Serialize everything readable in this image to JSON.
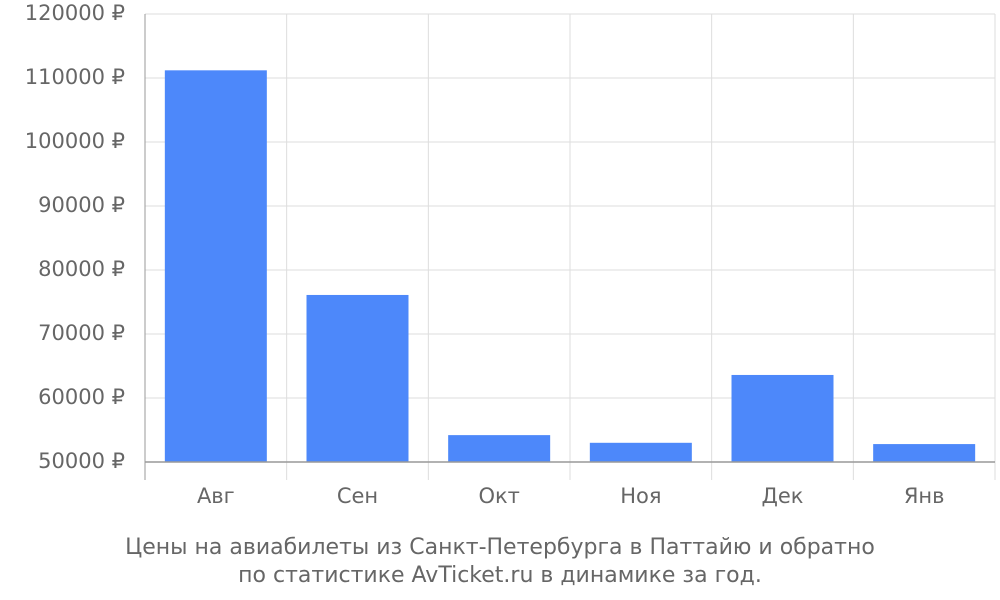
{
  "chart_data": {
    "type": "bar",
    "caption": [
      "Цены на авиабилеты из Санкт-Петербурга в Паттайю и обратно",
      "по статистике AvTicket.ru в динамике за год."
    ],
    "categories": [
      "Авг",
      "Сен",
      "Окт",
      "Ноя",
      "Дек",
      "Янв"
    ],
    "values": [
      111200,
      76100,
      54200,
      53000,
      63600,
      52800
    ],
    "color": "#4d88fa",
    "ylim": [
      50000,
      120000
    ],
    "yticks": [
      {
        "value": 50000,
        "label": "50000 ₽"
      },
      {
        "value": 60000,
        "label": "60000 ₽"
      },
      {
        "value": 70000,
        "label": "70000 ₽"
      },
      {
        "value": 80000,
        "label": "80000 ₽"
      },
      {
        "value": 90000,
        "label": "90000 ₽"
      },
      {
        "value": 100000,
        "label": "100000 ₽"
      },
      {
        "value": 110000,
        "label": "110000 ₽"
      },
      {
        "value": 120000,
        "label": "120000 ₽"
      }
    ],
    "grid": true
  }
}
